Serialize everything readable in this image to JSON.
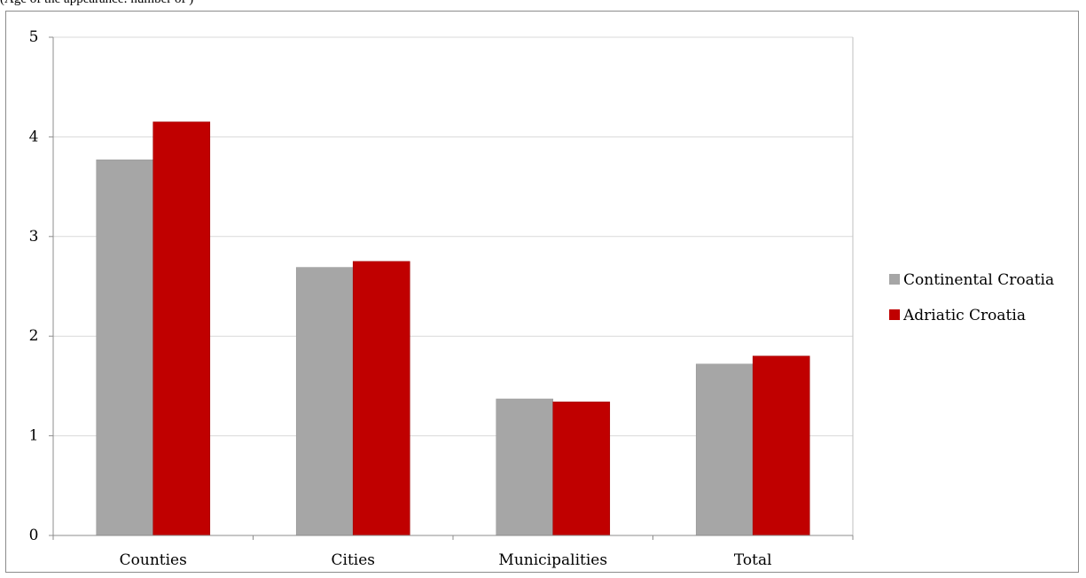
{
  "caption_fragment": "(Age of the appearance: number of )",
  "chart_data": {
    "type": "bar",
    "categories": [
      "Counties",
      "Cities",
      "Municipalities",
      "Total"
    ],
    "series": [
      {
        "name": "Continental Croatia",
        "color": "#a6a6a6",
        "values": [
          3.77,
          2.69,
          1.37,
          1.72
        ]
      },
      {
        "name": "Adriatic Croatia",
        "color": "#c00000",
        "values": [
          4.15,
          2.75,
          1.34,
          1.8
        ]
      }
    ],
    "yticks": [
      "0",
      "1",
      "2",
      "3",
      "4",
      "5"
    ],
    "ylim": [
      0,
      5
    ],
    "grid": true,
    "legend_position": "right"
  }
}
